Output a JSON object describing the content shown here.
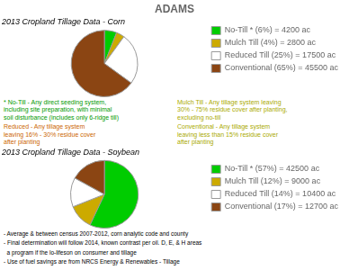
{
  "chart_data": [
    {
      "type": "pie",
      "title": "ADAMS",
      "subtitle": "2013 Cropland Tillage Data - Corn",
      "categories": [
        "No-Till * (6%) = 4200 ac",
        "Mulch Till (4%) = 2800 ac",
        "Reduced Till (25%) = 17500 ac",
        "Conventional (65%) = 45500 ac"
      ],
      "values": [
        6,
        4,
        25,
        65
      ],
      "colors": [
        "#00cc00",
        "#ccaa00",
        "#ffffff",
        "#8B4513"
      ],
      "legend": "right",
      "annotations": [
        {
          "text": "* No-Till - Any direct seeding system,\nincluding site preparation, with minimal\nsoil disturbance (includes only 6-ridge till)",
          "color": "#009900"
        },
        {
          "text": "Mulch Till - Any tillage system leaving\n30% - 75% residue cover after planting,\nexcluding no-till",
          "color": "#aaaa00"
        },
        {
          "text": "Reduced - Any tillage system\nleaving 16% - 30% residue cover\nafter planting",
          "color": "#cc6600"
        },
        {
          "text": "Conventional - Any tillage system\nleaving less than 15% residue cover\nafter planting",
          "color": "#aaaa00"
        }
      ]
    },
    {
      "type": "pie",
      "subtitle": "2013 Cropland Tillage Data - Soybean",
      "categories": [
        "No-Till * (57%) = 42500 ac",
        "Mulch Till (12%) = 9000 ac",
        "Reduced Till (14%) = 10400 ac",
        "Conventional (17%) = 12700 ac"
      ],
      "values": [
        57,
        12,
        14,
        17
      ],
      "colors": [
        "#00cc00",
        "#ccaa00",
        "#ffffff",
        "#8B4513"
      ],
      "legend": "right",
      "annotations": [
        {
          "text": "- Average & between census 2007-2012, corn analytic code and county"
        },
        {
          "text": "- Final determination will follow 2014, known contrast per oil. D, E, & H areas"
        },
        {
          "text": "  a program if the lo-lifeson on consumer and tillage"
        },
        {
          "text": "- Use of fuel savings are from NRCS Energy & Renewables - Tillage"
        }
      ]
    }
  ]
}
